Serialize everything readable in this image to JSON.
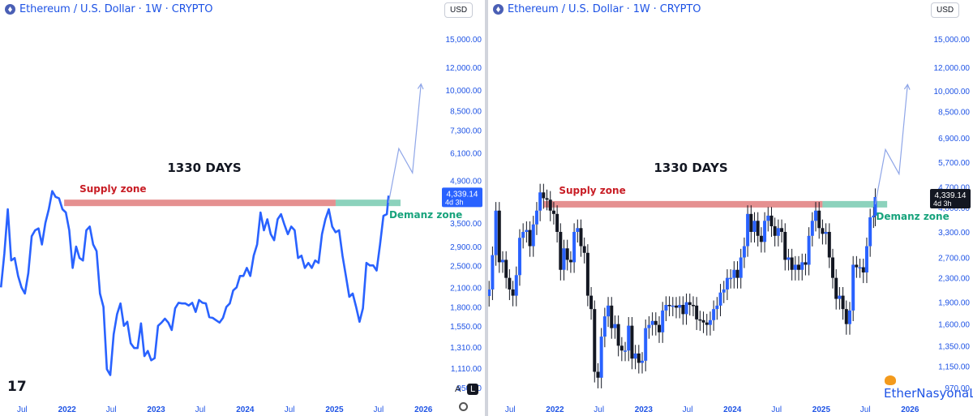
{
  "symbol": {
    "title": "Ethereum / U.S. Dollar · 1W · CRYPTO",
    "currency_button": "USD",
    "scale_buttons": [
      "A",
      "L"
    ],
    "settings_icon": "gear-icon"
  },
  "watermark": "EtherNasyonaL",
  "tv_logo": "17",
  "colors": {
    "line": "#2962ff",
    "supply": "#e07c7c",
    "demand": "#7fcdb5",
    "supply_text": "#c81d25",
    "demand_text": "#17a37c",
    "axis_text": "#1e53e5",
    "price_tag_left": "#2962ff",
    "price_tag_right": "#131722"
  },
  "chart_data": [
    {
      "type": "line",
      "title": "",
      "log_scale": true,
      "y_ticks": [
        950,
        1110,
        1310,
        1550,
        1800,
        2100,
        2500,
        2900,
        3500,
        4100,
        4900,
        6100,
        7300,
        8500,
        10000,
        12000,
        15000
      ],
      "y_tick_labels": [
        "950.00",
        "1,110.00",
        "1,310.00",
        "1,550.00",
        "1,800.00",
        "2,100.00",
        "2,500.00",
        "2,900.00",
        "3,500.00",
        "4,100.00",
        "4,900.00",
        "6,100.00",
        "7,300.00",
        "8,500.00",
        "10,000.00",
        "12,000.00",
        "15,000.00"
      ],
      "x_ticks": [
        "2021-07",
        "2022-01",
        "2022-07",
        "2023-01",
        "2023-07",
        "2024-01",
        "2024-07",
        "2025-01",
        "2025-07",
        "2026-01"
      ],
      "x_tick_labels": [
        "Jul",
        "2022",
        "Jul",
        "2023",
        "Jul",
        "2024",
        "Jul",
        "2025",
        "Jul",
        "2026"
      ],
      "ylim": [
        880,
        17500
      ],
      "xlim": [
        "2021-04",
        "2026-03"
      ],
      "series": [
        {
          "x": [
            "2021-04-05",
            "2021-04-19",
            "2021-05-03",
            "2021-05-17",
            "2021-05-31",
            "2021-06-14",
            "2021-06-28",
            "2021-07-12",
            "2021-07-26",
            "2021-08-09",
            "2021-08-23",
            "2021-09-06",
            "2021-09-20",
            "2021-10-04",
            "2021-10-18",
            "2021-11-01",
            "2021-11-15",
            "2021-11-29",
            "2021-12-13",
            "2021-12-27",
            "2022-01-10",
            "2022-01-24",
            "2022-02-07",
            "2022-02-21",
            "2022-03-07",
            "2022-03-21",
            "2022-04-04",
            "2022-04-18",
            "2022-05-02",
            "2022-05-16",
            "2022-05-30",
            "2022-06-13",
            "2022-06-27",
            "2022-07-11",
            "2022-07-25",
            "2022-08-08",
            "2022-08-22",
            "2022-09-05",
            "2022-09-19",
            "2022-10-03",
            "2022-10-17",
            "2022-10-31",
            "2022-11-14",
            "2022-11-28",
            "2022-12-12",
            "2022-12-26",
            "2023-01-09",
            "2023-01-23",
            "2023-02-06",
            "2023-02-20",
            "2023-03-06",
            "2023-03-20",
            "2023-04-03",
            "2023-04-17",
            "2023-05-01",
            "2023-05-15",
            "2023-05-29",
            "2023-06-12",
            "2023-06-26",
            "2023-07-10",
            "2023-07-24",
            "2023-08-07",
            "2023-08-21",
            "2023-09-04",
            "2023-09-18",
            "2023-10-02",
            "2023-10-16",
            "2023-10-30",
            "2023-11-13",
            "2023-11-27",
            "2023-12-11",
            "2023-12-25",
            "2024-01-08",
            "2024-01-22",
            "2024-02-05",
            "2024-02-19",
            "2024-03-04",
            "2024-03-18",
            "2024-04-01",
            "2024-04-15",
            "2024-04-29",
            "2024-05-13",
            "2024-05-27",
            "2024-06-10",
            "2024-06-24",
            "2024-07-08",
            "2024-07-22",
            "2024-08-05",
            "2024-08-19",
            "2024-09-02",
            "2024-09-16",
            "2024-09-30",
            "2024-10-14",
            "2024-10-28",
            "2024-11-11",
            "2024-11-25",
            "2024-12-09",
            "2024-12-23",
            "2025-01-06",
            "2025-01-20",
            "2025-02-03",
            "2025-02-17",
            "2025-03-03",
            "2025-03-17",
            "2025-03-31",
            "2025-04-14",
            "2025-04-28",
            "2025-05-12",
            "2025-05-26",
            "2025-06-09",
            "2025-06-23",
            "2025-07-07",
            "2025-07-21",
            "2025-08-04",
            "2025-08-11"
          ],
          "y": [
            2100,
            2750,
            3900,
            2600,
            2650,
            2300,
            2100,
            2000,
            2350,
            3150,
            3300,
            3350,
            2950,
            3500,
            3900,
            4500,
            4300,
            4250,
            3900,
            3800,
            3300,
            2450,
            2900,
            2650,
            2600,
            3300,
            3400,
            2950,
            2800,
            2000,
            1800,
            1100,
            1050,
            1450,
            1700,
            1850,
            1550,
            1600,
            1350,
            1300,
            1300,
            1580,
            1220,
            1270,
            1180,
            1200,
            1550,
            1590,
            1640,
            1590,
            1500,
            1780,
            1860,
            1850,
            1850,
            1820,
            1860,
            1730,
            1900,
            1860,
            1850,
            1660,
            1650,
            1620,
            1590,
            1650,
            1800,
            1850,
            2050,
            2100,
            2300,
            2300,
            2450,
            2300,
            2700,
            2950,
            3800,
            3300,
            3600,
            3200,
            3050,
            3600,
            3750,
            3450,
            3200,
            3400,
            3300,
            2650,
            2700,
            2450,
            2550,
            2450,
            2600,
            2550,
            3200,
            3600,
            3900,
            3400,
            3250,
            3300,
            2700,
            2300,
            1950,
            2000,
            1800,
            1600,
            1780,
            2550,
            2500,
            2500,
            2400,
            2950,
            3700,
            3750,
            4339.14
          ]
        },
        {
          "name": "projection",
          "x": [
            "2025-08-11",
            "2025-09-22",
            "2025-11-17",
            "2025-12-22"
          ],
          "y": [
            4100,
            6300,
            5200,
            10500
          ]
        }
      ],
      "annotations": {
        "supply_zone": {
          "label": "Supply zone",
          "price": 4100,
          "x_start": "2021-12-20",
          "x_end": "2025-01-06"
        },
        "demand_zone": {
          "label": "Demanz zone",
          "price": 4100,
          "x_start": "2025-01-06",
          "x_end": "2025-09-29"
        },
        "days_label": "1330 DAYS"
      },
      "last_price": {
        "value": "4,339.14",
        "countdown": "4d 3h"
      }
    },
    {
      "type": "candlestick",
      "title": "",
      "log_scale": true,
      "y_ticks": [
        970,
        1150,
        1350,
        1600,
        1900,
        2300,
        2700,
        3300,
        4000,
        4700,
        5700,
        6900,
        8500,
        10000,
        12000,
        15000
      ],
      "y_tick_labels": [
        "970.00",
        "1,150.00",
        "1,350.00",
        "1,600.00",
        "1,900.00",
        "2,300.00",
        "2,700.00",
        "3,300.00",
        "4,000.00",
        "4,700.00",
        "5,700.00",
        "6,900.00",
        "8,500.00",
        "10,000.00",
        "12,000.00",
        "15,000.00"
      ],
      "x_ticks": [
        "2021-07",
        "2022-01",
        "2022-07",
        "2023-01",
        "2023-07",
        "2024-01",
        "2024-07",
        "2025-01",
        "2025-07",
        "2026-01"
      ],
      "x_tick_labels": [
        "Jul",
        "2022",
        "Jul",
        "2023",
        "Jul",
        "2024",
        "Jul",
        "2025",
        "Jul",
        "2026"
      ],
      "ylim": [
        900,
        17500
      ],
      "xlim": [
        "2021-04",
        "2026-03"
      ],
      "series": [
        {
          "name": "projection",
          "x": [
            "2025-08-11",
            "2025-09-22",
            "2025-11-17",
            "2025-12-22"
          ],
          "y": [
            4100,
            6300,
            5200,
            10500
          ]
        }
      ],
      "annotations": {
        "supply_zone": {
          "label": "Supply zone",
          "price": 4100,
          "x_start": "2021-11-15",
          "x_end": "2025-01-06"
        },
        "demand_zone": {
          "label": "Demanz zone",
          "price": 4100,
          "x_start": "2025-01-06",
          "x_end": "2025-09-29"
        },
        "days_label": "1330 DAYS"
      },
      "last_price": {
        "value": "4,339.14",
        "countdown": "4d 3h"
      }
    }
  ]
}
